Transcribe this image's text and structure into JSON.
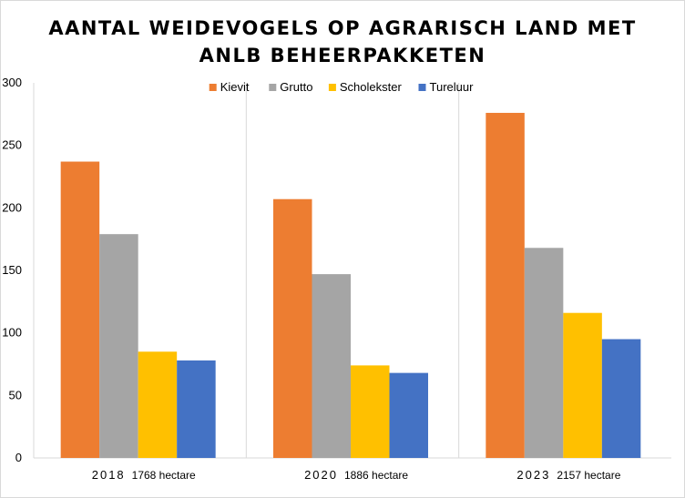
{
  "chart_data": {
    "type": "bar",
    "title_lines": [
      "AANTAL WEIDEVOGELS OP AGRARISCH LAND MET",
      "ANLB BEHEERPAKKETEN"
    ],
    "categories": [
      {
        "year": "2018",
        "area": "1768 hectare"
      },
      {
        "year": "2020",
        "area": "1886 hectare"
      },
      {
        "year": "2023",
        "area": "2157 hectare"
      }
    ],
    "series": [
      {
        "name": "Kievit",
        "color": "#ED7D31",
        "values": [
          237,
          207,
          276
        ]
      },
      {
        "name": "Grutto",
        "color": "#A5A5A5",
        "values": [
          179,
          147,
          168
        ]
      },
      {
        "name": "Scholekster",
        "color": "#FFC000",
        "values": [
          85,
          74,
          116
        ]
      },
      {
        "name": "Tureluur",
        "color": "#4472C4",
        "values": [
          78,
          68,
          95
        ]
      }
    ],
    "ylim": [
      0,
      300
    ],
    "yticks": [
      "0",
      "50",
      "100",
      "150",
      "200",
      "250",
      "300"
    ],
    "grid": false,
    "category_separators": true,
    "legend_position": "top"
  }
}
